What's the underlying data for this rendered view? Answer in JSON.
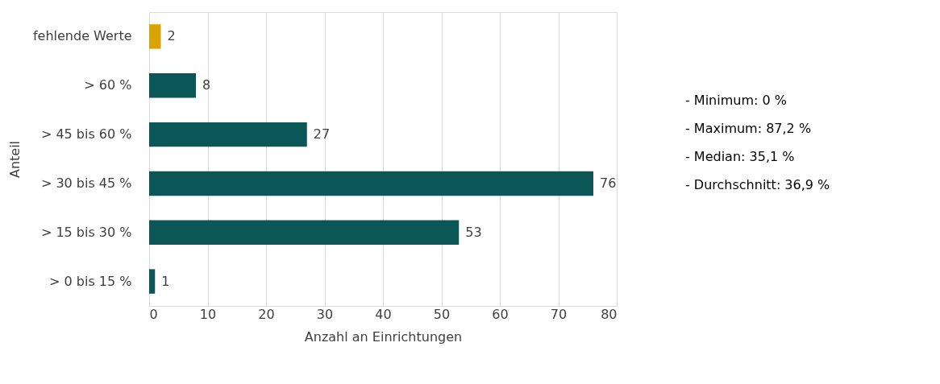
{
  "chart_data": {
    "type": "bar",
    "orientation": "horizontal",
    "xlabel": "Anzahl an Einrichtungen",
    "ylabel": "Anteil",
    "categories": [
      "fehlende Werte",
      "> 60 %",
      "> 45 bis 60 %",
      "> 30 bis 45 %",
      "> 15 bis 30 %",
      "> 0 bis 15 %"
    ],
    "values": [
      2,
      8,
      27,
      76,
      53,
      1
    ],
    "colors": [
      "#d9a400",
      "#0b5656",
      "#0b5656",
      "#0b5656",
      "#0b5656",
      "#0b5656"
    ],
    "xlim": [
      0,
      80
    ],
    "xticks": [
      0,
      10,
      20,
      30,
      40,
      50,
      60,
      70,
      80
    ],
    "grid": "x",
    "data_labels": true,
    "annotations": [
      "-      Minimum: 0 %",
      "-      Maximum: 87,2 %",
      "-      Median: 35,1 %",
      "-      Durchschnitt: 36,9 %"
    ]
  }
}
